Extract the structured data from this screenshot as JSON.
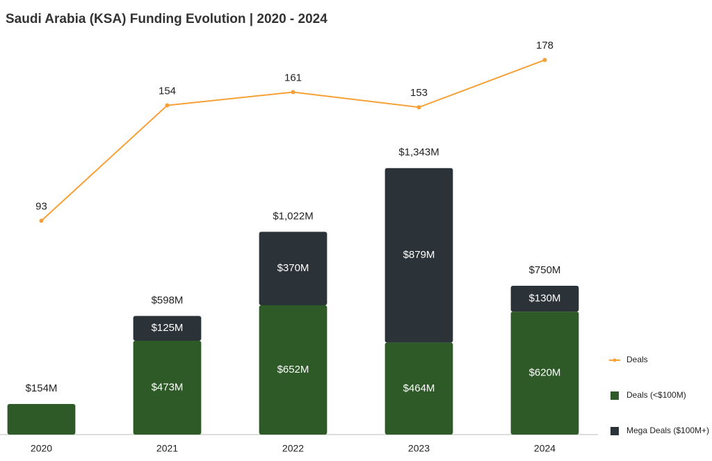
{
  "chart_data": {
    "type": "combo",
    "title": "Saudi Arabia (KSA) Funding Evolution | 2020 - 2024",
    "categories": [
      "2020",
      "2021",
      "2022",
      "2023",
      "2024"
    ],
    "series": [
      {
        "name": "Deals",
        "type": "line",
        "axis": "y2",
        "color": "#f7a035",
        "values": [
          93,
          154,
          161,
          153,
          178
        ]
      },
      {
        "name": "Deals (<$100M)",
        "type": "bar",
        "color": "#2d5a27",
        "values": [
          154,
          473,
          652,
          464,
          620
        ],
        "value_labels": [
          "$154M",
          "$473M",
          "$652M",
          "$464M",
          "$620M"
        ]
      },
      {
        "name": "Mega Deals ($100M+)",
        "type": "bar",
        "color": "#2b3338",
        "values": [
          null,
          125,
          370,
          879,
          130
        ],
        "value_labels": [
          null,
          "$125M",
          "$370M",
          "$879M",
          "$130M"
        ]
      }
    ],
    "totals": {
      "values": [
        154,
        598,
        1022,
        1343,
        750
      ],
      "value_labels": [
        "$154M",
        "$598M",
        "$1,022M",
        "$1,343M",
        "$750M"
      ]
    },
    "ylim": [
      0,
      2050
    ],
    "y2lim": [
      -20,
      195
    ],
    "legend": "right"
  }
}
